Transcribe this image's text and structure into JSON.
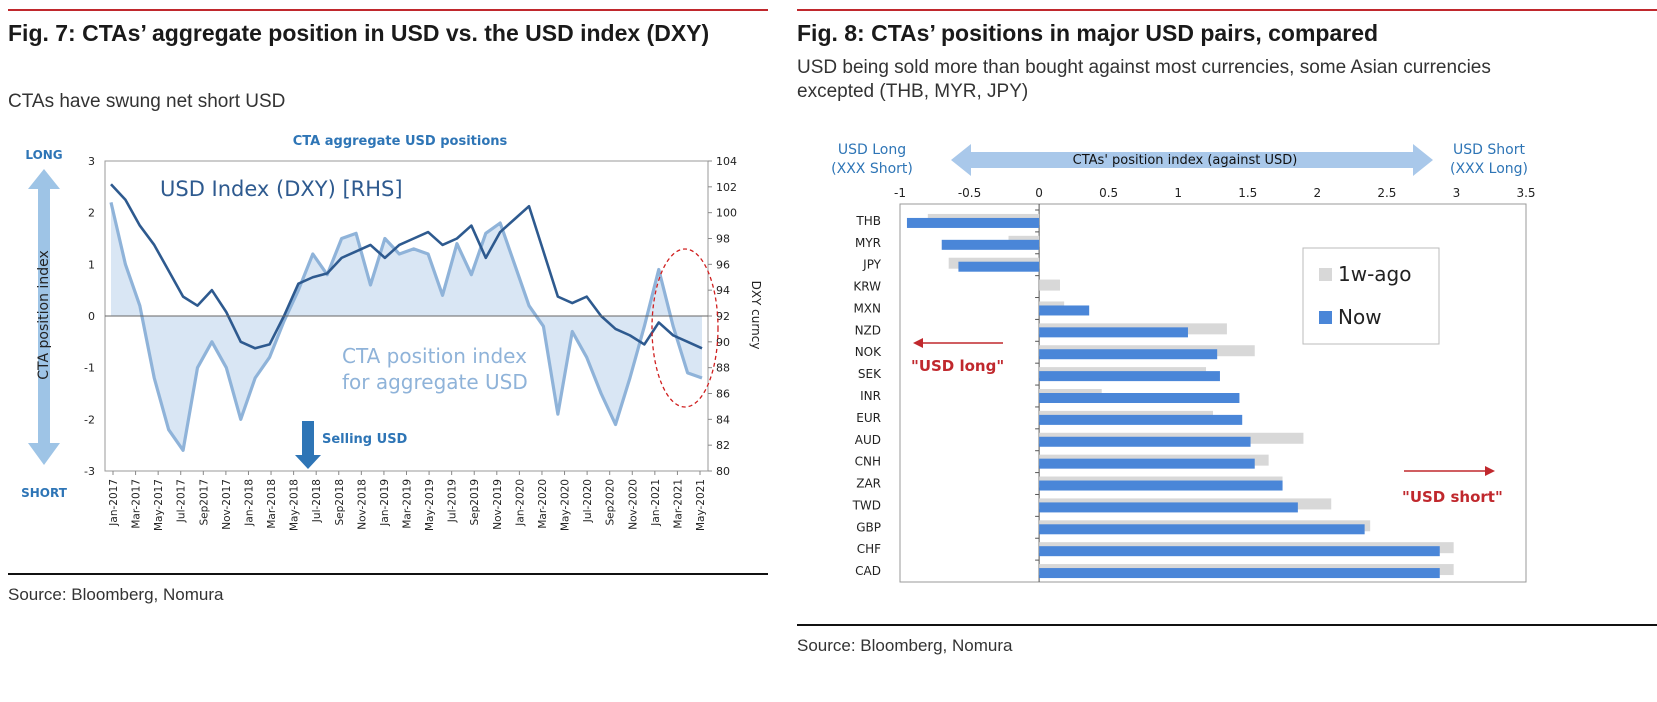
{
  "fig7": {
    "title": "Fig. 7: CTAs’ aggregate position in USD vs. the USD index (DXY)",
    "subtitle": "CTAs have swung net short USD",
    "source": "Source: Bloomberg, Nomura"
  },
  "fig8": {
    "title": "Fig. 8: CTAs’ positions in major USD pairs, compared",
    "subtitle": "USD being sold more than bought against most currencies, some Asian currencies excepted (THB, MYR, JPY)",
    "source": "Source: Bloomberg, Nomura"
  },
  "chart_data": [
    {
      "type": "line",
      "title": "CTA aggregate USD positions",
      "ylabel": "CTA position index",
      "y2label": "DXY curncy",
      "ylim": [
        -3,
        3
      ],
      "y2lim": [
        80,
        104
      ],
      "yticks": [
        "3",
        "2",
        "1",
        "0",
        "-1",
        "-2",
        "-3"
      ],
      "y2ticks": [
        "104",
        "102",
        "100",
        "98",
        "96",
        "94",
        "92",
        "90",
        "88",
        "86",
        "84",
        "82",
        "80"
      ],
      "xticks": [
        "Jan-2017",
        "Mar-2017",
        "May-2017",
        "Jul-2017",
        "Sep2017",
        "Nov-2017",
        "Jan-2018",
        "Mar-2018",
        "May-2018",
        "Jul-2018",
        "Sep2018",
        "Nov-2018",
        "Jan-2019",
        "Mar-2019",
        "May-2019",
        "Jul-2019",
        "Sep2019",
        "Nov-2019",
        "Jan-2020",
        "Mar-2020",
        "May-2020",
        "Jul-2020",
        "Sep2020",
        "Nov-2020",
        "Jan-2021",
        "Mar-2021",
        "May-2021"
      ],
      "long_label": "LONG",
      "short_label": "SHORT",
      "selling_label": "Selling USD",
      "series": [
        {
          "name": "USD Index (DXY) [RHS]",
          "axis": "right",
          "color": "#2e5a8f",
          "values": [
            102.2,
            101,
            99,
            97.5,
            95.5,
            93.5,
            92.8,
            94,
            92.3,
            90,
            89.5,
            89.8,
            92,
            94.5,
            95,
            95.3,
            96.5,
            97,
            97.5,
            96.5,
            97.5,
            98,
            98.5,
            97.5,
            98,
            99,
            96.5,
            98.5,
            99.5,
            100.5,
            97,
            93.5,
            93,
            93.5,
            92,
            91,
            90.5,
            89.8,
            91.5,
            90.5,
            90,
            89.5
          ]
        },
        {
          "name": "CTA position index for aggregate USD",
          "axis": "left",
          "color": "#8fb3d9",
          "values": [
            2.2,
            1.0,
            0.2,
            -1.2,
            -2.2,
            -2.6,
            -1.0,
            -0.5,
            -1.0,
            -2.0,
            -1.2,
            -0.8,
            -0.1,
            0.5,
            1.2,
            0.8,
            1.5,
            1.6,
            0.6,
            1.5,
            1.2,
            1.3,
            1.2,
            0.4,
            1.4,
            0.8,
            1.6,
            1.8,
            1.0,
            0.2,
            -0.2,
            -1.9,
            -0.3,
            -0.8,
            -1.5,
            -2.1,
            -1.2,
            -0.2,
            0.9,
            -0.2,
            -1.1,
            -1.2
          ]
        }
      ],
      "annotations": [
        "USD Index (DXY) [RHS]",
        "CTA position index",
        "for aggregate USD"
      ]
    },
    {
      "type": "bar",
      "orientation": "horizontal",
      "title": "CTAs' position index (against USD)",
      "xlim": [
        -1,
        3.5
      ],
      "xticks": [
        "-1",
        "-0.5",
        "0",
        "0.5",
        "1",
        "1.5",
        "2",
        "2.5",
        "3",
        "3.5"
      ],
      "left_label": [
        "USD Long",
        "(XXX Short)"
      ],
      "right_label": [
        "USD Short",
        "(XXX Long)"
      ],
      "long_annotation": "\"USD long\"",
      "short_annotation": "\"USD short\"",
      "categories": [
        "THB",
        "MYR",
        "JPY",
        "KRW",
        "MXN",
        "NZD",
        "NOK",
        "SEK",
        "INR",
        "EUR",
        "AUD",
        "CNH",
        "ZAR",
        "TWD",
        "GBP",
        "CHF",
        "CAD"
      ],
      "series": [
        {
          "name": "1w-ago",
          "color": "#d8d8d8",
          "values": [
            -0.8,
            -0.22,
            -0.65,
            0.15,
            0.18,
            1.35,
            1.55,
            1.2,
            0.45,
            1.25,
            1.9,
            1.65,
            1.75,
            2.1,
            2.38,
            2.98,
            2.98
          ]
        },
        {
          "name": "Now",
          "color": "#4a86d8",
          "values": [
            -0.95,
            -0.7,
            -0.58,
            0.0,
            0.36,
            1.07,
            1.28,
            1.3,
            1.44,
            1.46,
            1.52,
            1.55,
            1.75,
            1.86,
            2.34,
            2.88,
            2.88
          ]
        }
      ]
    }
  ]
}
